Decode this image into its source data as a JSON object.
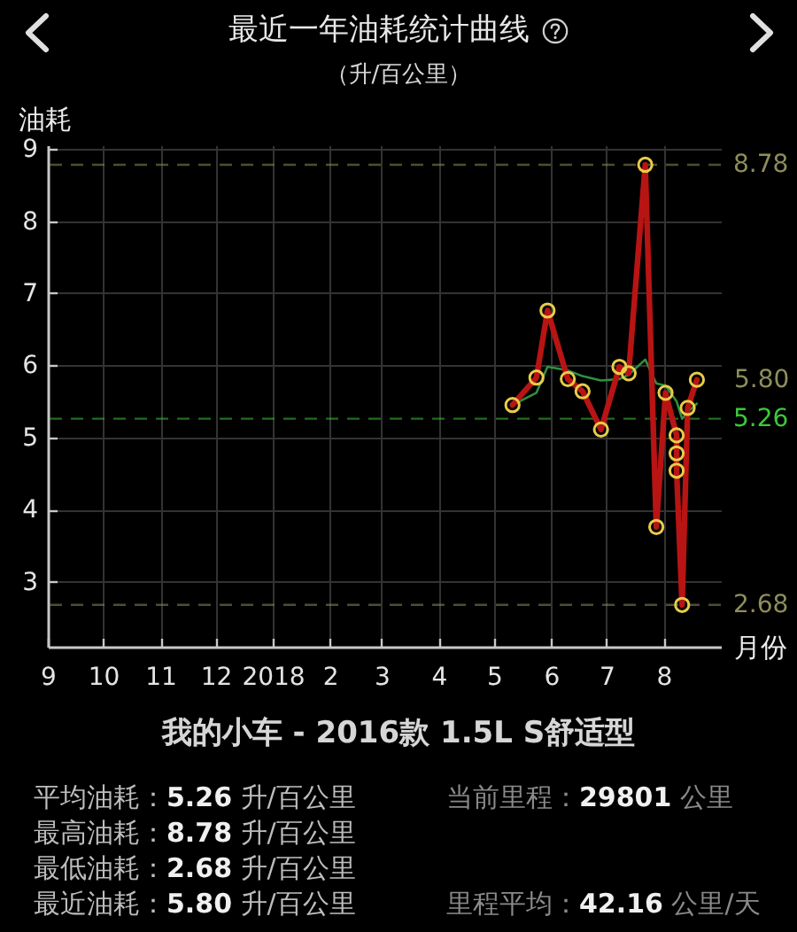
{
  "chart_data": {
    "type": "line",
    "title": "最近一年油耗统计曲线",
    "subtitle": "（升/百公里）",
    "ylabel": "油耗",
    "xlabel": "月份",
    "series": [
      {
        "color": "#2f8f40",
        "marker": "none",
        "x": [
          "2018-05-11",
          "2018-05-24",
          "2018-05-30",
          "2018-06-10",
          "2018-06-18",
          "2018-06-28",
          "2018-07-08",
          "2018-07-13",
          "2018-07-22",
          "2018-07-28",
          "2018-08-02",
          "2018-08-08",
          "2018-08-11",
          "2018-08-14",
          "2018-08-19"
        ],
        "values": [
          5.45,
          5.62,
          5.98,
          5.93,
          5.85,
          5.79,
          5.81,
          5.87,
          6.08,
          5.75,
          5.72,
          5.5,
          5.26,
          5.35,
          5.47
        ]
      },
      {
        "color": "#b81414",
        "x": [
          "2018-05-11",
          "2018-05-24",
          "2018-05-30",
          "2018-06-10",
          "2018-06-18",
          "2018-06-28",
          "2018-07-08",
          "2018-07-13",
          "2018-07-22",
          "2018-07-28",
          "2018-08-02",
          "2018-08-08",
          "2018-08-08",
          "2018-08-08",
          "2018-08-11",
          "2018-08-14",
          "2018-08-19"
        ],
        "values": [
          5.45,
          5.83,
          6.76,
          5.81,
          5.64,
          5.11,
          5.98,
          5.89,
          8.78,
          3.76,
          5.62,
          5.03,
          4.78,
          4.54,
          2.68,
          5.41,
          5.8
        ]
      }
    ],
    "xlim": [
      "2017-09",
      "2018-09"
    ],
    "xticks": [
      {
        "value": "2017-09",
        "label": "9"
      },
      {
        "value": "2017-10",
        "label": "10"
      },
      {
        "value": "2017-11",
        "label": "11"
      },
      {
        "value": "2017-12",
        "label": "12"
      },
      {
        "value": "2018-01",
        "label": "2018"
      },
      {
        "value": "2018-02",
        "label": "2"
      },
      {
        "value": "2018-03",
        "label": "3"
      },
      {
        "value": "2018-04",
        "label": "4"
      },
      {
        "value": "2018-05",
        "label": "5"
      },
      {
        "value": "2018-06",
        "label": "6"
      },
      {
        "value": "2018-07",
        "label": "7"
      },
      {
        "value": "2018-08",
        "label": "8"
      }
    ],
    "ylim": [
      2.1,
      9.05
    ],
    "yticks": [
      3,
      4,
      5,
      6,
      7,
      8,
      9
    ],
    "ref_lines": [
      {
        "axis": "y",
        "value": 8.78,
        "label": "8.78",
        "color": "#8e8e5a",
        "line_style": "dashed"
      },
      {
        "axis": "y",
        "value": 5.26,
        "label": "5.26",
        "color": "#3cc83c",
        "line_style": "dashed"
      },
      {
        "axis": "y",
        "value": 2.68,
        "label": "2.68",
        "color": "#8e8e5a",
        "line_style": "dashed"
      }
    ],
    "annotations": [
      {
        "text": "5.80",
        "x": "2018-08-19",
        "y": 5.8
      },
      "我的小车 - 2016款 1.5L S舒适型",
      "平均油耗：5.26 升/百公里",
      "最高油耗：8.78 升/百公里",
      "最低油耗：2.68 升/百公里",
      "最近油耗：5.80 升/百公里",
      "当前里程：29801 公里",
      "里程平均：42.16 公里/天"
    ],
    "grid": true,
    "marker": "circle",
    "line_style": "solid"
  }
}
